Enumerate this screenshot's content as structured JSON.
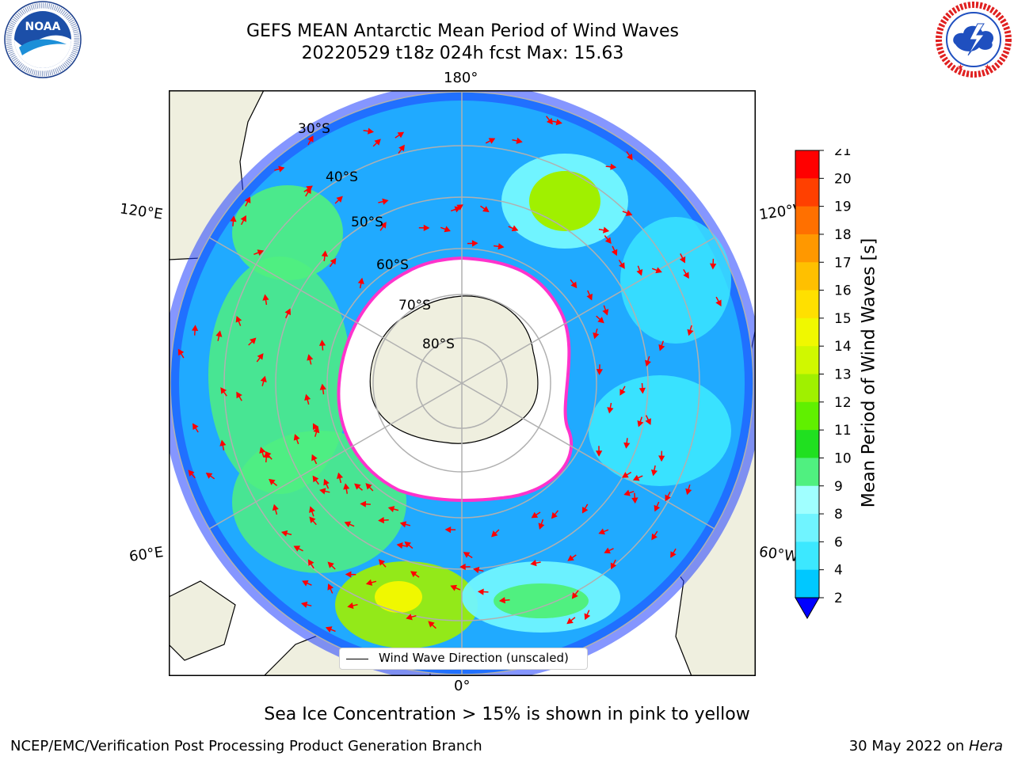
{
  "header": {
    "title_line1": "GEFS MEAN Antarctic Mean Period of Wind Waves",
    "title_line2": "20220529 t18z 024h fcst   Max: 15.63"
  },
  "logos": {
    "noaa": {
      "text": "NOAA",
      "ring_text": "NATIONAL OCEANIC AND ATMOSPHERIC ADMINISTRATION · U.S. DEPARTMENT OF COMMERCE"
    },
    "nws": {
      "ring_text": "NATIONAL WEATHER SERVICE"
    }
  },
  "map": {
    "projection": "south polar stereographic",
    "longitude_labels": {
      "top": "180°",
      "bottom": "0°",
      "left_upper": "120°E",
      "left_lower": "60°E",
      "right_upper": "120°W",
      "right_lower": "60°W"
    },
    "latitude_labels": [
      "30°S",
      "40°S",
      "50°S",
      "60°S",
      "70°S",
      "80°S"
    ],
    "colors": {
      "land": "#efefdf",
      "ice_edge": "#ff33cc",
      "arrow": "#ff0000",
      "grid": "#b0b0b0"
    }
  },
  "legend": {
    "label": "Wind Wave Direction (unscaled)"
  },
  "colorbar": {
    "label": "Mean Period of Wind Waves [s]",
    "ticks": [
      "2",
      "4",
      "6",
      "8",
      "9",
      "10",
      "11",
      "12",
      "13",
      "14",
      "15",
      "16",
      "17",
      "18",
      "19",
      "20",
      "21"
    ],
    "colors": [
      "#0060ff",
      "#00c8ff",
      "#3ce8ff",
      "#70f4ff",
      "#a0ffff",
      "#50f080",
      "#20e020",
      "#60f000",
      "#a0f000",
      "#d0f800",
      "#f0f800",
      "#ffe000",
      "#ffc000",
      "#ff9800",
      "#ff7000",
      "#ff4000",
      "#ff0000"
    ],
    "under_color": "#0000ff"
  },
  "note": "Sea Ice Concentration > 15% is shown in pink to yellow",
  "footer": {
    "left": "NCEP/EMC/Verification Post Processing Product Generation Branch",
    "right_prefix": "30 May 2022 on ",
    "right_host": "Hera"
  }
}
